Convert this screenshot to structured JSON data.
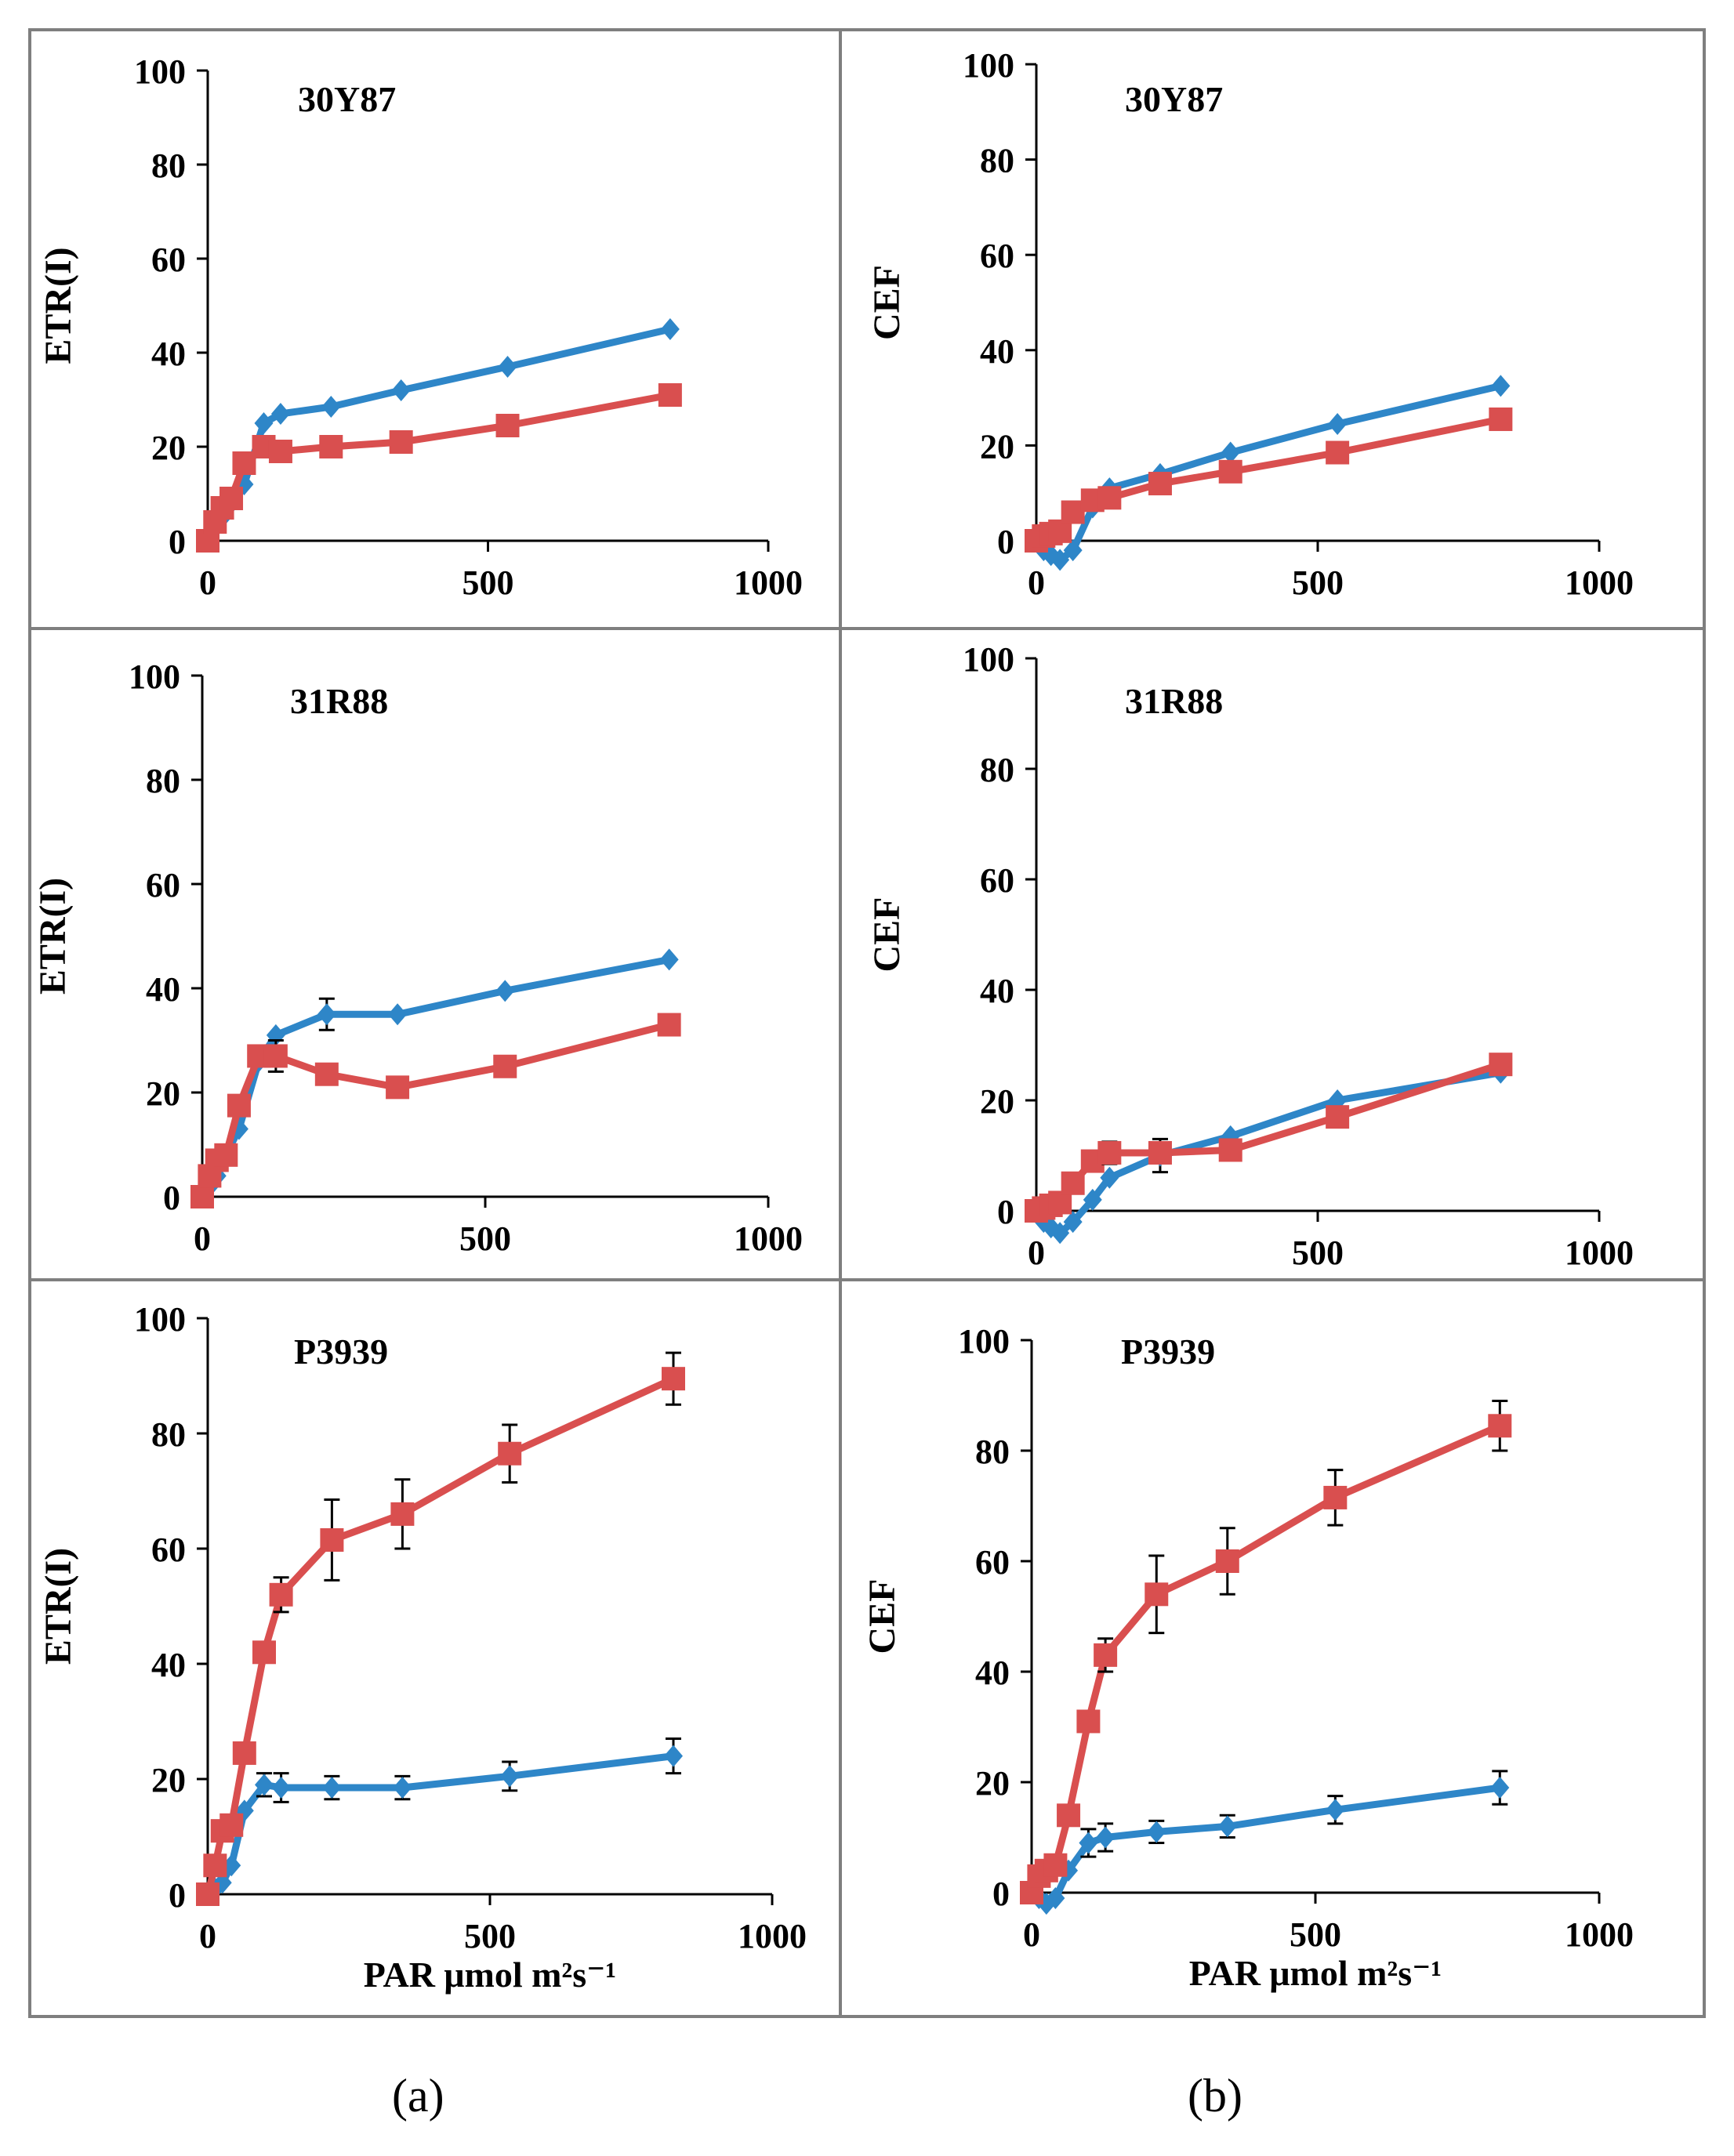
{
  "figure": {
    "labels": [
      "(a)",
      "(b)"
    ],
    "colors": {
      "series1": "#2E86C8",
      "series2": "#D94F4F",
      "axis": "#000000",
      "frame": "#7F7F7F"
    }
  },
  "chart_data": [
    {
      "type": "line",
      "title": "30Y87",
      "ylabel": "ETR(I)",
      "xlabel": "",
      "xlim": [
        0,
        1000
      ],
      "ylim": [
        0,
        100
      ],
      "xticks": [
        0,
        500,
        1000
      ],
      "yticks": [
        0,
        20,
        40,
        60,
        80,
        100
      ],
      "series": [
        {
          "name": "series1",
          "marker": "diamond",
          "x": [
            0,
            13,
            26,
            42,
            65,
            100,
            130,
            220,
            345,
            535,
            825
          ],
          "y": [
            0,
            3,
            5,
            8,
            12,
            25,
            27,
            28.5,
            32,
            37,
            45
          ],
          "err": [
            0,
            0,
            0,
            0,
            0,
            0,
            0,
            0,
            0,
            0,
            0
          ]
        },
        {
          "name": "series2",
          "marker": "square",
          "x": [
            0,
            13,
            26,
            42,
            65,
            100,
            130,
            220,
            345,
            535,
            825
          ],
          "y": [
            0,
            4,
            7,
            9,
            16.5,
            20,
            19,
            20,
            21,
            24.5,
            31
          ],
          "err": [
            0,
            0,
            0,
            0,
            0,
            0,
            0,
            0,
            0,
            0,
            0
          ]
        }
      ]
    },
    {
      "type": "line",
      "title": "30Y87",
      "ylabel": "CEF",
      "xlabel": "",
      "xlim": [
        0,
        1000
      ],
      "ylim": [
        0,
        100
      ],
      "xticks": [
        0,
        500,
        1000
      ],
      "yticks": [
        0,
        20,
        40,
        60,
        80,
        100
      ],
      "series": [
        {
          "name": "series1",
          "marker": "diamond",
          "x": [
            0,
            13,
            26,
            42,
            65,
            100,
            130,
            220,
            345,
            535,
            825
          ],
          "y": [
            0,
            -2,
            -3,
            -4,
            -2,
            7,
            11,
            14,
            18.5,
            24.5,
            32.5
          ],
          "err": [
            0,
            0,
            0,
            0,
            0,
            0,
            0,
            0,
            0,
            0,
            0
          ]
        },
        {
          "name": "series2",
          "marker": "square",
          "x": [
            0,
            13,
            26,
            42,
            65,
            100,
            130,
            220,
            345,
            535,
            825
          ],
          "y": [
            0,
            1,
            1.5,
            2,
            6,
            8.5,
            9,
            12,
            14.5,
            18.5,
            25.5
          ],
          "err": [
            0,
            0,
            0,
            0,
            0,
            0,
            0,
            0,
            0,
            0,
            0
          ]
        }
      ]
    },
    {
      "type": "line",
      "title": "31R88",
      "ylabel": "ETR(I)",
      "xlabel": "",
      "xlim": [
        0,
        1000
      ],
      "ylim": [
        0,
        100
      ],
      "xticks": [
        0,
        500,
        1000
      ],
      "yticks": [
        0,
        20,
        40,
        60,
        80,
        100
      ],
      "series": [
        {
          "name": "series1",
          "marker": "diamond",
          "x": [
            0,
            13,
            26,
            42,
            65,
            100,
            130,
            220,
            345,
            535,
            825
          ],
          "y": [
            0,
            2,
            4,
            8,
            13,
            26,
            31,
            35,
            35,
            39.5,
            45.5
          ],
          "err": [
            0,
            0,
            0,
            0,
            0,
            0,
            0,
            3,
            0,
            0,
            0
          ]
        },
        {
          "name": "series2",
          "marker": "square",
          "x": [
            0,
            13,
            26,
            42,
            65,
            100,
            130,
            220,
            345,
            535,
            825
          ],
          "y": [
            0,
            4,
            7,
            8,
            17.5,
            27,
            27,
            23.5,
            21,
            25,
            33
          ],
          "err": [
            0,
            0,
            0,
            0,
            0,
            0,
            3,
            0,
            0,
            0,
            0
          ]
        }
      ]
    },
    {
      "type": "line",
      "title": "31R88",
      "ylabel": "CEF",
      "xlabel": "",
      "xlim": [
        0,
        1000
      ],
      "ylim": [
        0,
        100
      ],
      "xticks": [
        0,
        500,
        1000
      ],
      "yticks": [
        0,
        20,
        40,
        60,
        80,
        100
      ],
      "series": [
        {
          "name": "series1",
          "marker": "diamond",
          "x": [
            0,
            13,
            26,
            42,
            65,
            100,
            130,
            220,
            345,
            535,
            825
          ],
          "y": [
            0,
            -2,
            -3,
            -4,
            -2,
            2,
            6,
            10,
            13.5,
            20,
            25
          ],
          "err": [
            0,
            0,
            0,
            0,
            0,
            0,
            0,
            3,
            0,
            0,
            0
          ]
        },
        {
          "name": "series2",
          "marker": "square",
          "x": [
            0,
            13,
            26,
            42,
            65,
            100,
            130,
            220,
            345,
            535,
            825
          ],
          "y": [
            0,
            0.5,
            1,
            1.5,
            5,
            9,
            10.5,
            10.5,
            11,
            17,
            26.5
          ],
          "err": [
            0,
            0,
            0,
            0,
            0,
            0,
            2,
            0,
            0,
            0,
            0
          ]
        }
      ]
    },
    {
      "type": "line",
      "title": "P3939",
      "ylabel": "ETR(I)",
      "xlabel": "PAR μmol m²s⁻¹",
      "xlim": [
        0,
        1000
      ],
      "ylim": [
        0,
        100
      ],
      "xticks": [
        0,
        500,
        1000
      ],
      "yticks": [
        0,
        20,
        40,
        60,
        80,
        100
      ],
      "series": [
        {
          "name": "series1",
          "marker": "diamond",
          "x": [
            0,
            13,
            26,
            42,
            65,
            100,
            130,
            220,
            345,
            535,
            825
          ],
          "y": [
            0,
            1,
            2,
            5,
            14.5,
            19,
            18.5,
            18.5,
            18.5,
            20.5,
            24
          ],
          "err": [
            0,
            0,
            0,
            0,
            0,
            2,
            2.5,
            2,
            2,
            2.5,
            3
          ]
        },
        {
          "name": "series2",
          "marker": "square",
          "x": [
            0,
            13,
            26,
            42,
            65,
            100,
            130,
            220,
            345,
            535,
            825
          ],
          "y": [
            0,
            5,
            11,
            12,
            24.5,
            42,
            52,
            61.5,
            66,
            76.5,
            89.5
          ],
          "err": [
            0,
            0,
            0,
            0,
            0,
            0,
            3,
            7,
            6,
            5,
            4.5
          ]
        }
      ]
    },
    {
      "type": "line",
      "title": "P3939",
      "ylabel": "CEF",
      "xlabel": "PAR μmol m²s⁻¹",
      "xlim": [
        0,
        1000
      ],
      "ylim": [
        0,
        100
      ],
      "xticks": [
        0,
        500,
        1000
      ],
      "yticks": [
        0,
        20,
        40,
        60,
        80,
        100
      ],
      "series": [
        {
          "name": "series1",
          "marker": "diamond",
          "x": [
            0,
            13,
            26,
            42,
            65,
            100,
            130,
            220,
            345,
            535,
            825
          ],
          "y": [
            0,
            -1,
            -2,
            -1,
            4,
            9,
            10,
            11,
            12,
            15,
            19
          ],
          "err": [
            0,
            0,
            0,
            0,
            0,
            2.5,
            2.5,
            2,
            2,
            2.5,
            3
          ]
        },
        {
          "name": "series2",
          "marker": "square",
          "x": [
            0,
            13,
            26,
            42,
            65,
            100,
            130,
            220,
            345,
            535,
            825
          ],
          "y": [
            0,
            3,
            4,
            5,
            14,
            31,
            43,
            54,
            60,
            71.5,
            84.5
          ],
          "err": [
            0,
            0,
            0,
            0,
            0,
            0,
            3,
            7,
            6,
            5,
            4.5
          ]
        }
      ]
    }
  ]
}
